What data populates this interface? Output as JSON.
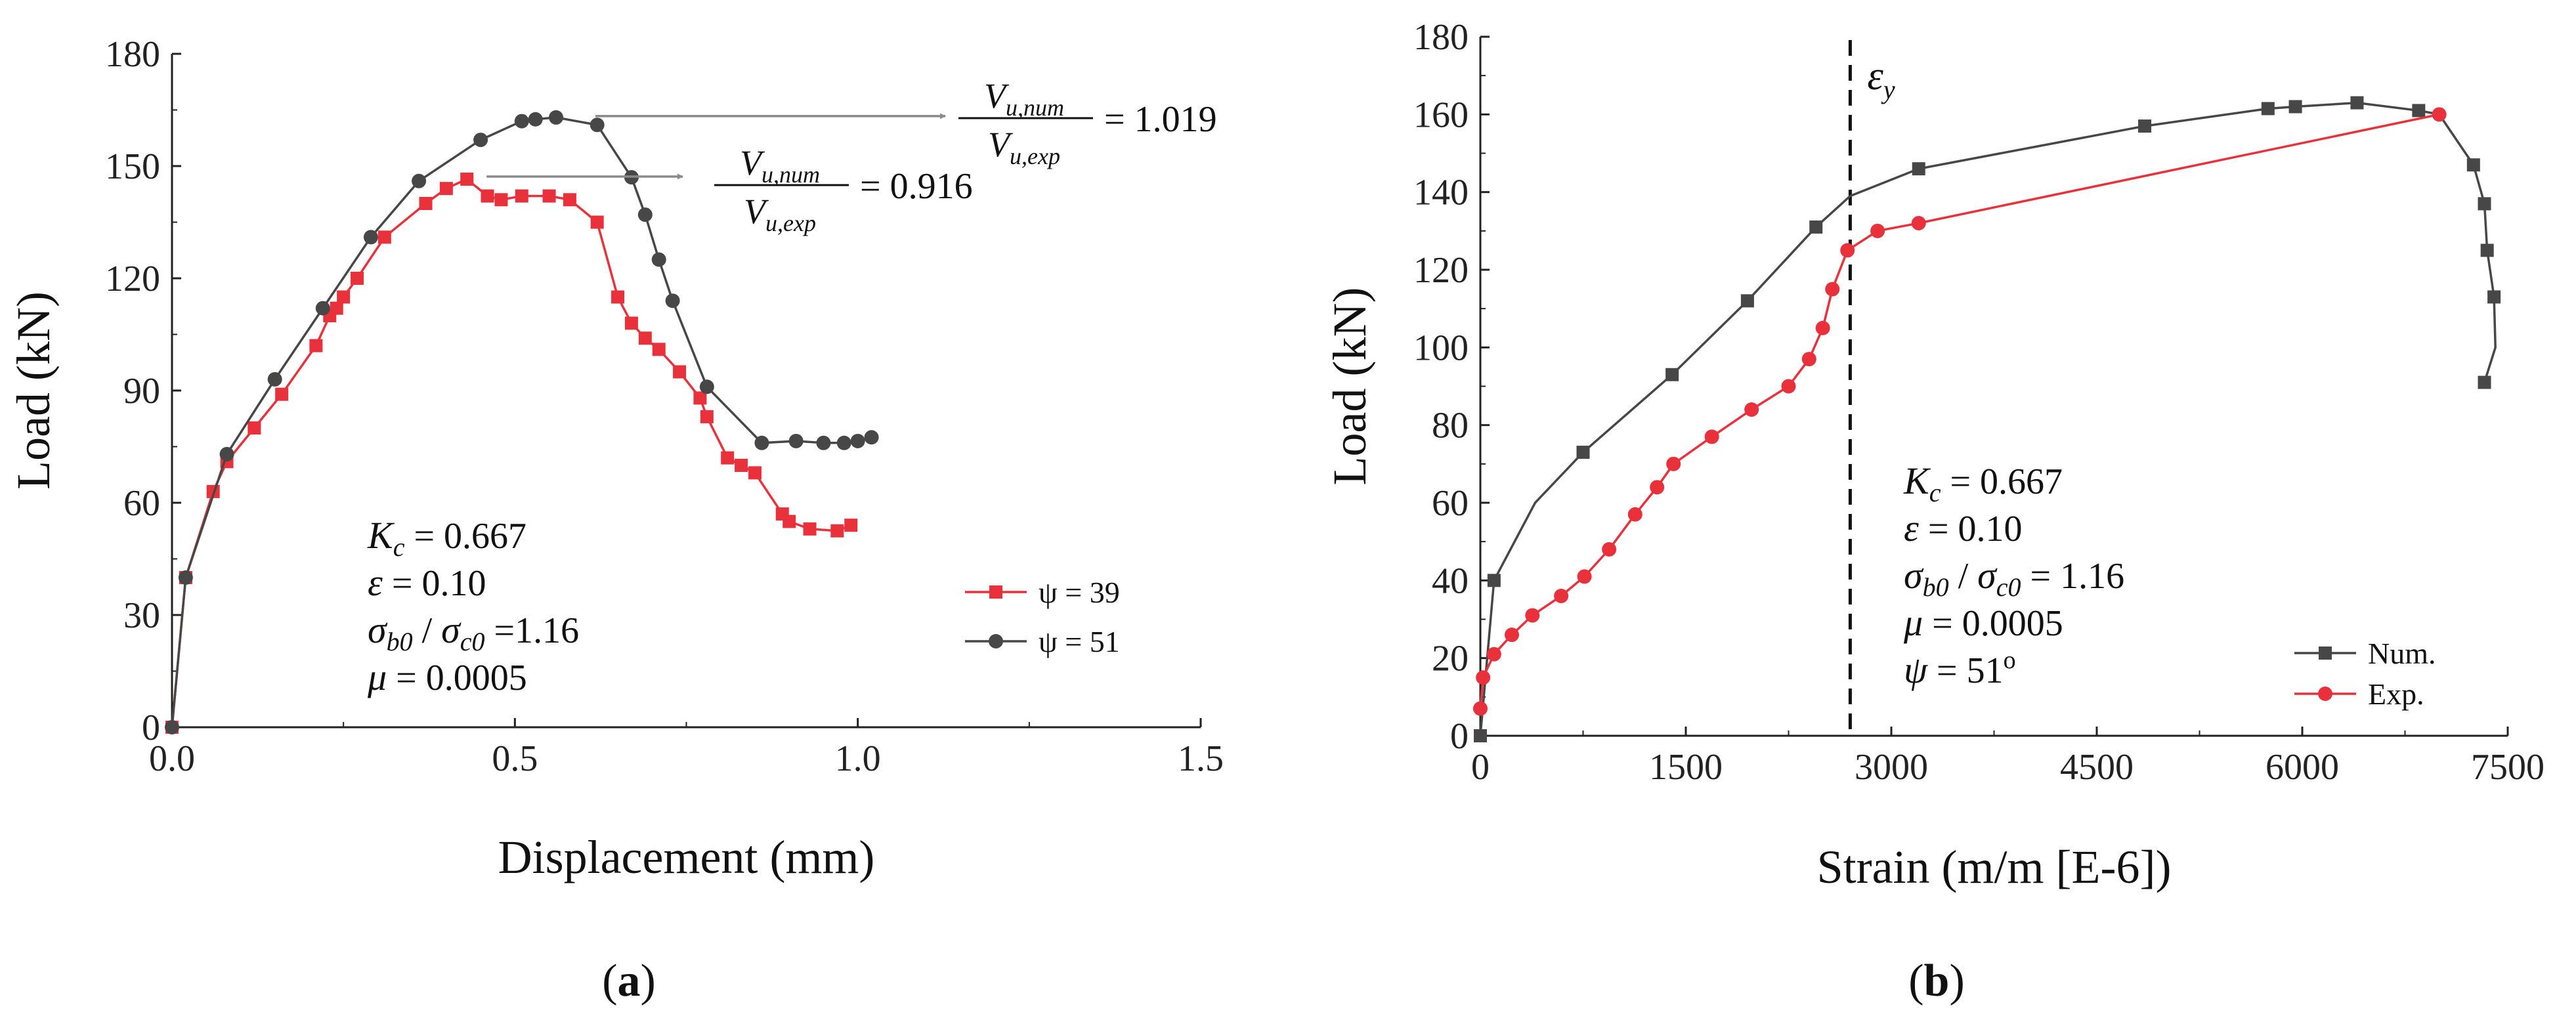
{
  "chart_data": [
    {
      "panel": "a",
      "type": "line",
      "xlabel": "Displacement (mm)",
      "ylabel": "Load (kN)",
      "xlim": [
        0,
        1.5
      ],
      "ylim": [
        0,
        180
      ],
      "xticks": [
        "0.0",
        "0.5",
        "1.0",
        "1.5"
      ],
      "yticks": [
        "0",
        "30",
        "60",
        "90",
        "120",
        "150",
        "180"
      ],
      "caption": "a",
      "legend_position": "bottom-right",
      "series": [
        {
          "name": "ψ = 39",
          "color": "#e8313a",
          "marker": "square",
          "x": [
            0,
            0.02,
            0.06,
            0.08,
            0.12,
            0.16,
            0.21,
            0.23,
            0.24,
            0.25,
            0.27,
            0.31,
            0.37,
            0.4,
            0.43,
            0.46,
            0.48,
            0.51,
            0.55,
            0.58,
            0.62,
            0.65,
            0.67,
            0.69,
            0.71,
            0.74,
            0.77,
            0.78,
            0.81,
            0.83,
            0.85,
            0.89,
            0.9,
            0.93,
            0.97,
            0.99
          ],
          "y": [
            0,
            40,
            63,
            71,
            80,
            89,
            102,
            110,
            112,
            115,
            120,
            131,
            140,
            144,
            146.5,
            142,
            141,
            142,
            142,
            141,
            135,
            115,
            108,
            104,
            101,
            95,
            88,
            83,
            72,
            70,
            68,
            57,
            55,
            53,
            52.5,
            54
          ]
        },
        {
          "name": "ψ = 51",
          "color": "#474747",
          "marker": "circle",
          "x": [
            0,
            0.02,
            0.08,
            0.15,
            0.22,
            0.29,
            0.36,
            0.45,
            0.51,
            0.53,
            0.56,
            0.62,
            0.67,
            0.69,
            0.71,
            0.73,
            0.78,
            0.86,
            0.91,
            0.95,
            0.98,
            1.0,
            1.02
          ],
          "y": [
            0,
            40,
            73,
            93,
            112,
            131,
            146,
            157,
            162,
            162.5,
            163,
            161,
            147,
            137,
            125,
            114,
            91,
            76,
            76.5,
            76,
            76,
            76.5,
            77.5
          ]
        }
      ],
      "annotations": [
        {
          "num": "V",
          "num_sub": "u,num",
          "den": "V",
          "den_sub": "u,exp",
          "value": "= 1.019",
          "points_to": [
            0.56,
            163
          ]
        },
        {
          "num": "V",
          "num_sub": "u,num",
          "den": "V",
          "den_sub": "u,exp",
          "value": "= 0.916",
          "points_to": [
            0.43,
            146.5
          ]
        }
      ],
      "params": [
        {
          "sym": "K",
          "sub": "c",
          "rest": " = 0.667"
        },
        {
          "sym": "ε",
          "sub": "",
          "rest": " = 0.10"
        },
        {
          "sym": "σ",
          "sub": "b0",
          "mid": " / ",
          "sym2": "σ",
          "sub2": "c0",
          "rest": " =1.16"
        },
        {
          "sym": "μ",
          "sub": "",
          "rest": " = 0.0005"
        }
      ]
    },
    {
      "panel": "b",
      "type": "line",
      "xlabel": "Strain (m/m [E-6])",
      "ylabel": "Load (kN)",
      "xlim": [
        0,
        7500
      ],
      "ylim": [
        0,
        180
      ],
      "xticks": [
        "0",
        "1500",
        "3000",
        "4500",
        "6000",
        "7500"
      ],
      "yticks": [
        "0",
        "20",
        "40",
        "60",
        "80",
        "100",
        "120",
        "140",
        "160",
        "180"
      ],
      "caption": "b",
      "vline": {
        "x": 2700,
        "label": "ε",
        "label_sub": "y"
      },
      "legend_position": "bottom-right",
      "series": [
        {
          "name": "Num.",
          "color": "#474747",
          "marker": "square",
          "x": [
            0,
            100,
            400,
            750,
            1400,
            1950,
            2450,
            2700,
            3200,
            4850,
            5750,
            5950,
            6400,
            6850,
            7000,
            7250,
            7330,
            7350,
            7400,
            7410,
            7330
          ],
          "y": [
            0,
            40,
            60,
            73,
            93,
            112,
            131,
            139,
            146,
            157,
            161.5,
            162,
            163,
            161,
            160,
            147,
            137,
            125,
            113,
            100,
            91
          ],
          "marker_mask": [
            true,
            true,
            false,
            true,
            true,
            true,
            true,
            false,
            true,
            true,
            true,
            true,
            true,
            true,
            false,
            true,
            true,
            true,
            true,
            false,
            true
          ]
        },
        {
          "name": "Exp.",
          "color": "#e8313a",
          "marker": "circle",
          "x": [
            0,
            20,
            100,
            230,
            380,
            590,
            760,
            940,
            1130,
            1290,
            1410,
            1690,
            1980,
            2250,
            2400,
            2500,
            2570,
            2680,
            2900,
            3200,
            7000
          ],
          "y": [
            7,
            15,
            21,
            26,
            31,
            36,
            41,
            48,
            57,
            64,
            70,
            77,
            84,
            90,
            97,
            105,
            115,
            125,
            130,
            132,
            160
          ]
        }
      ],
      "params": [
        {
          "sym": "K",
          "sub": "c",
          "rest": " = 0.667"
        },
        {
          "sym": "ε",
          "sub": "",
          "rest": " = 0.10"
        },
        {
          "sym": "σ",
          "sub": "b0",
          "mid": " / ",
          "sym2": "σ",
          "sub2": "c0",
          "rest": " = 1.16"
        },
        {
          "sym": "μ",
          "sub": "",
          "rest": " = 0.0005"
        },
        {
          "sym": "ψ",
          "sub": "",
          "rest": " = 51",
          "sup": "o"
        }
      ]
    }
  ]
}
